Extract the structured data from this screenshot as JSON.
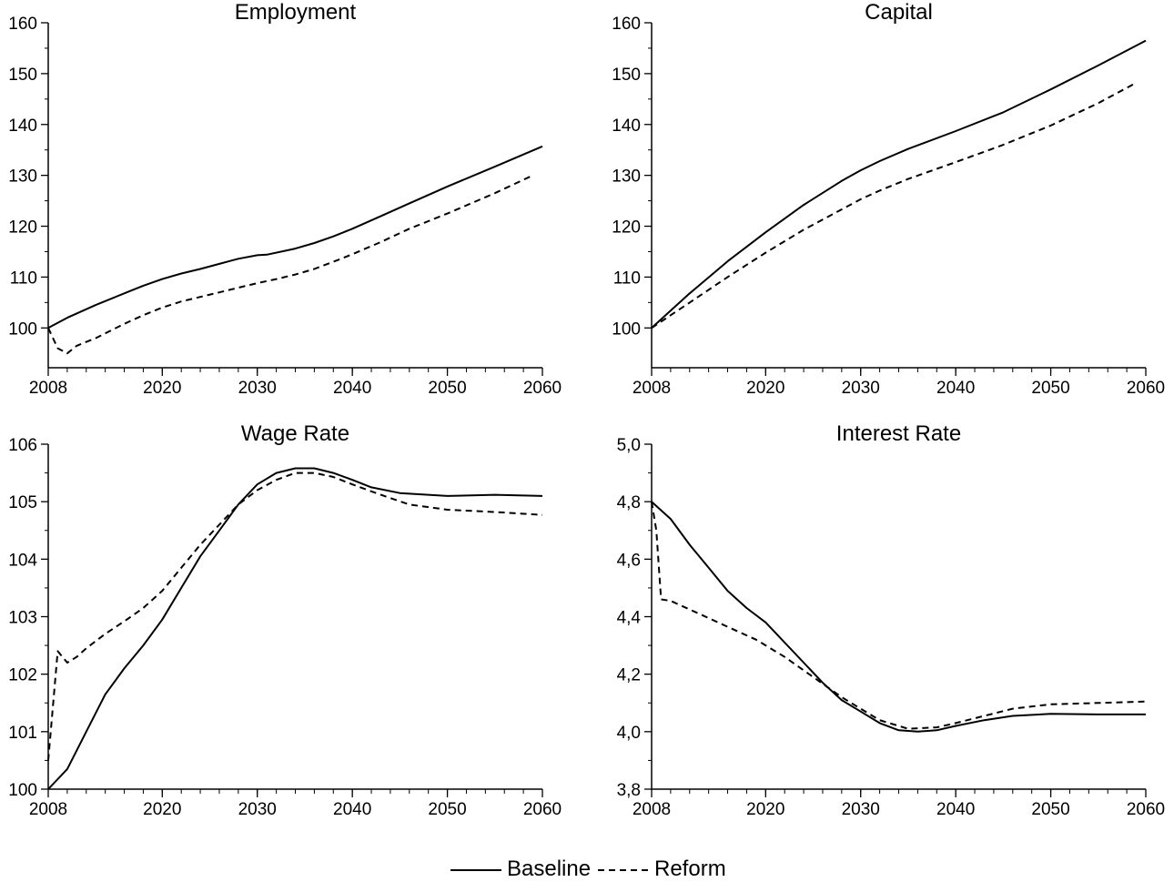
{
  "chart_data": [
    {
      "type": "line",
      "title": "Employment",
      "x_ticks": [
        2008,
        2020,
        2030,
        2040,
        2050,
        2060
      ],
      "y_ticks": [
        "100",
        "110",
        "120",
        "130",
        "140",
        "150",
        "160"
      ],
      "xlim": [
        2008,
        2060
      ],
      "ylim": [
        92,
        160
      ],
      "grid": false,
      "series": [
        {
          "name": "Baseline",
          "style": "solid",
          "x": [
            2008,
            2010,
            2013,
            2016,
            2018,
            2020,
            2022,
            2024,
            2026,
            2028,
            2030,
            2031,
            2034,
            2036,
            2038,
            2040,
            2043,
            2046,
            2050,
            2055,
            2060
          ],
          "y": [
            100,
            102,
            104.5,
            106.8,
            108.3,
            109.6,
            110.7,
            111.6,
            112.6,
            113.6,
            114.3,
            114.4,
            115.6,
            116.7,
            118.0,
            119.5,
            122.0,
            124.5,
            127.8,
            131.7,
            135.7
          ]
        },
        {
          "name": "Reform",
          "style": "dashed",
          "x": [
            2008,
            2009,
            2010,
            2011,
            2013,
            2016,
            2018,
            2020,
            2022,
            2024,
            2026,
            2028,
            2030,
            2032,
            2034,
            2036,
            2038,
            2040,
            2043,
            2046,
            2050,
            2055,
            2059
          ],
          "y": [
            100,
            96,
            95,
            96.5,
            98,
            100.8,
            102.5,
            104.0,
            105.2,
            106.1,
            107.0,
            107.9,
            108.8,
            109.6,
            110.5,
            111.6,
            113.0,
            114.5,
            116.9,
            119.5,
            122.5,
            126.5,
            130.0
          ]
        }
      ]
    },
    {
      "type": "line",
      "title": "Capital",
      "x_ticks": [
        2008,
        2020,
        2030,
        2040,
        2050,
        2060
      ],
      "y_ticks": [
        "100",
        "110",
        "120",
        "130",
        "140",
        "150",
        "160"
      ],
      "xlim": [
        2008,
        2060
      ],
      "ylim": [
        92,
        160
      ],
      "grid": false,
      "series": [
        {
          "name": "Baseline",
          "style": "solid",
          "x": [
            2008,
            2012,
            2016,
            2020,
            2024,
            2028,
            2030,
            2032,
            2035,
            2040,
            2045,
            2050,
            2055,
            2060
          ],
          "y": [
            100,
            106.8,
            113.1,
            118.8,
            124.2,
            128.9,
            131.0,
            132.8,
            135.2,
            138.7,
            142.4,
            146.9,
            151.6,
            156.5
          ]
        },
        {
          "name": "Reform",
          "style": "dashed",
          "x": [
            2008,
            2012,
            2016,
            2020,
            2024,
            2028,
            2030,
            2032,
            2035,
            2040,
            2045,
            2050,
            2055,
            2059
          ],
          "y": [
            100,
            105.0,
            110.0,
            114.8,
            119.3,
            123.3,
            125.3,
            127.0,
            129.3,
            132.6,
            136.0,
            139.8,
            144.2,
            148.2
          ]
        }
      ]
    },
    {
      "type": "line",
      "title": "Wage Rate",
      "x_ticks": [
        2008,
        2020,
        2030,
        2040,
        2050,
        2060
      ],
      "y_ticks": [
        "100",
        "101",
        "102",
        "103",
        "104",
        "105",
        "106"
      ],
      "xlim": [
        2008,
        2060
      ],
      "ylim": [
        100,
        106
      ],
      "grid": false,
      "series": [
        {
          "name": "Baseline",
          "style": "solid",
          "x": [
            2008,
            2010,
            2012,
            2014,
            2016,
            2018,
            2020,
            2022,
            2024,
            2026,
            2028,
            2030,
            2032,
            2034,
            2036,
            2038,
            2040,
            2042,
            2045,
            2050,
            2055,
            2060
          ],
          "y": [
            100.0,
            100.35,
            101.0,
            101.65,
            102.1,
            102.5,
            102.95,
            103.5,
            104.05,
            104.5,
            104.95,
            105.3,
            105.5,
            105.58,
            105.58,
            105.5,
            105.38,
            105.25,
            105.15,
            105.1,
            105.12,
            105.1
          ]
        },
        {
          "name": "Reform",
          "style": "dashed",
          "x": [
            2008,
            2009,
            2010,
            2011,
            2012,
            2014,
            2016,
            2018,
            2020,
            2022,
            2024,
            2026,
            2028,
            2030,
            2032,
            2034,
            2036,
            2038,
            2040,
            2043,
            2046,
            2050,
            2055,
            2060
          ],
          "y": [
            100.5,
            102.4,
            102.2,
            102.3,
            102.45,
            102.7,
            102.92,
            103.15,
            103.45,
            103.85,
            104.25,
            104.6,
            104.95,
            105.2,
            105.38,
            105.5,
            105.5,
            105.43,
            105.3,
            105.12,
            104.95,
            104.86,
            104.82,
            104.77
          ]
        }
      ]
    },
    {
      "type": "line",
      "title": "Interest Rate",
      "x_ticks": [
        2008,
        2020,
        2030,
        2040,
        2050,
        2060
      ],
      "y_ticks": [
        "3,8",
        "4,0",
        "4,2",
        "4,4",
        "4,6",
        "4,8",
        "5,0"
      ],
      "xlim": [
        2008,
        2060
      ],
      "ylim": [
        3.8,
        5.0
      ],
      "grid": false,
      "series": [
        {
          "name": "Baseline",
          "style": "solid",
          "x": [
            2008,
            2010,
            2012,
            2014,
            2016,
            2018,
            2020,
            2022,
            2024,
            2026,
            2028,
            2030,
            2032,
            2034,
            2036,
            2038,
            2040,
            2043,
            2046,
            2050,
            2055,
            2060
          ],
          "y": [
            4.8,
            4.74,
            4.65,
            4.57,
            4.49,
            4.43,
            4.38,
            4.31,
            4.24,
            4.17,
            4.11,
            4.07,
            4.03,
            4.005,
            4.0,
            4.005,
            4.02,
            4.04,
            4.055,
            4.062,
            4.06,
            4.06
          ]
        },
        {
          "name": "Reform",
          "style": "dashed",
          "x": [
            2008,
            2008.5,
            2009,
            2010,
            2013,
            2016,
            2019,
            2022,
            2025,
            2028,
            2030,
            2032,
            2035,
            2038,
            2040,
            2043,
            2046,
            2050,
            2055,
            2060
          ],
          "y": [
            4.8,
            4.7,
            4.46,
            4.455,
            4.41,
            4.365,
            4.32,
            4.26,
            4.19,
            4.12,
            4.08,
            4.04,
            4.01,
            4.015,
            4.03,
            4.055,
            4.08,
            4.095,
            4.1,
            4.105
          ]
        }
      ]
    }
  ],
  "legend": {
    "items": [
      {
        "label": "Baseline",
        "style": "solid"
      },
      {
        "label": "Reform",
        "style": "dashed"
      }
    ]
  }
}
